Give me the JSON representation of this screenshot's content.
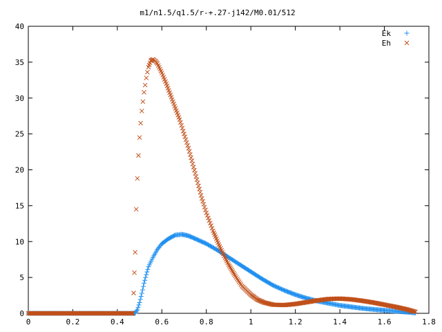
{
  "chart_data": {
    "type": "scatter",
    "title": "m1/n1.5/q1.5/r-+.27-j142/M0.01/512",
    "xlabel": "",
    "ylabel": "",
    "xlim": [
      0,
      1.8
    ],
    "ylim": [
      0,
      40
    ],
    "xticks": [
      "0",
      "0.2",
      "0.4",
      "0.6",
      "0.8",
      "1",
      "1.2",
      "1.4",
      "1.6",
      "1.8"
    ],
    "yticks": [
      "0",
      "5",
      "10",
      "15",
      "20",
      "25",
      "30",
      "35",
      "40"
    ],
    "grid": false,
    "legend": "top-right",
    "series": [
      {
        "name": "Ek",
        "marker": "plus",
        "color": "#1f8fef",
        "points": [
          [
            0.0,
            0
          ],
          [
            0.1,
            0
          ],
          [
            0.2,
            0
          ],
          [
            0.3,
            0
          ],
          [
            0.4,
            0
          ],
          [
            0.47,
            0
          ],
          [
            0.48,
            0.0
          ],
          [
            0.49,
            0.5
          ],
          [
            0.5,
            1.5
          ],
          [
            0.51,
            2.8
          ],
          [
            0.52,
            4.2
          ],
          [
            0.53,
            5.4
          ],
          [
            0.54,
            6.5
          ],
          [
            0.56,
            7.8
          ],
          [
            0.58,
            8.9
          ],
          [
            0.6,
            9.7
          ],
          [
            0.63,
            10.4
          ],
          [
            0.66,
            10.9
          ],
          [
            0.69,
            11.0
          ],
          [
            0.72,
            10.8
          ],
          [
            0.75,
            10.4
          ],
          [
            0.8,
            9.7
          ],
          [
            0.85,
            8.8
          ],
          [
            0.9,
            7.8
          ],
          [
            0.95,
            6.8
          ],
          [
            1.0,
            5.8
          ],
          [
            1.05,
            4.8
          ],
          [
            1.1,
            3.9
          ],
          [
            1.15,
            3.2
          ],
          [
            1.2,
            2.6
          ],
          [
            1.25,
            2.1
          ],
          [
            1.3,
            1.7
          ],
          [
            1.35,
            1.4
          ],
          [
            1.4,
            1.1
          ],
          [
            1.45,
            0.9
          ],
          [
            1.5,
            0.7
          ],
          [
            1.55,
            0.55
          ],
          [
            1.6,
            0.42
          ],
          [
            1.65,
            0.3
          ],
          [
            1.7,
            0.18
          ],
          [
            1.74,
            0.05
          ]
        ]
      },
      {
        "name": "Eh",
        "marker": "cross",
        "color": "#c0501a",
        "points": [
          [
            0.0,
            0
          ],
          [
            0.1,
            0
          ],
          [
            0.2,
            0
          ],
          [
            0.3,
            0
          ],
          [
            0.4,
            0
          ],
          [
            0.47,
            0
          ],
          [
            0.48,
            8.5
          ],
          [
            0.485,
            14.5
          ],
          [
            0.49,
            18.8
          ],
          [
            0.495,
            22.0
          ],
          [
            0.5,
            24.5
          ],
          [
            0.505,
            26.5
          ],
          [
            0.51,
            28.2
          ],
          [
            0.515,
            29.5
          ],
          [
            0.52,
            30.8
          ],
          [
            0.525,
            31.8
          ],
          [
            0.53,
            32.8
          ],
          [
            0.535,
            33.6
          ],
          [
            0.54,
            34.3
          ],
          [
            0.55,
            35.2
          ],
          [
            0.56,
            35.4
          ],
          [
            0.57,
            35.2
          ],
          [
            0.58,
            34.8
          ],
          [
            0.6,
            33.5
          ],
          [
            0.62,
            32.0
          ],
          [
            0.65,
            29.5
          ],
          [
            0.68,
            27.0
          ],
          [
            0.7,
            25.0
          ],
          [
            0.72,
            23.0
          ],
          [
            0.75,
            19.5
          ],
          [
            0.78,
            16.0
          ],
          [
            0.8,
            14.0
          ],
          [
            0.83,
            11.5
          ],
          [
            0.86,
            9.3
          ],
          [
            0.88,
            8.0
          ],
          [
            0.9,
            6.8
          ],
          [
            0.93,
            5.2
          ],
          [
            0.96,
            3.8
          ],
          [
            1.0,
            2.6
          ],
          [
            1.03,
            1.9
          ],
          [
            1.06,
            1.5
          ],
          [
            1.1,
            1.2
          ],
          [
            1.15,
            1.15
          ],
          [
            1.2,
            1.3
          ],
          [
            1.25,
            1.55
          ],
          [
            1.3,
            1.8
          ],
          [
            1.35,
            2.0
          ],
          [
            1.4,
            2.05
          ],
          [
            1.45,
            1.95
          ],
          [
            1.5,
            1.75
          ],
          [
            1.55,
            1.5
          ],
          [
            1.6,
            1.2
          ],
          [
            1.65,
            0.9
          ],
          [
            1.7,
            0.55
          ],
          [
            1.74,
            0.2
          ]
        ]
      }
    ]
  },
  "colors": {
    "axis": "#000000",
    "background": "#ffffff"
  }
}
